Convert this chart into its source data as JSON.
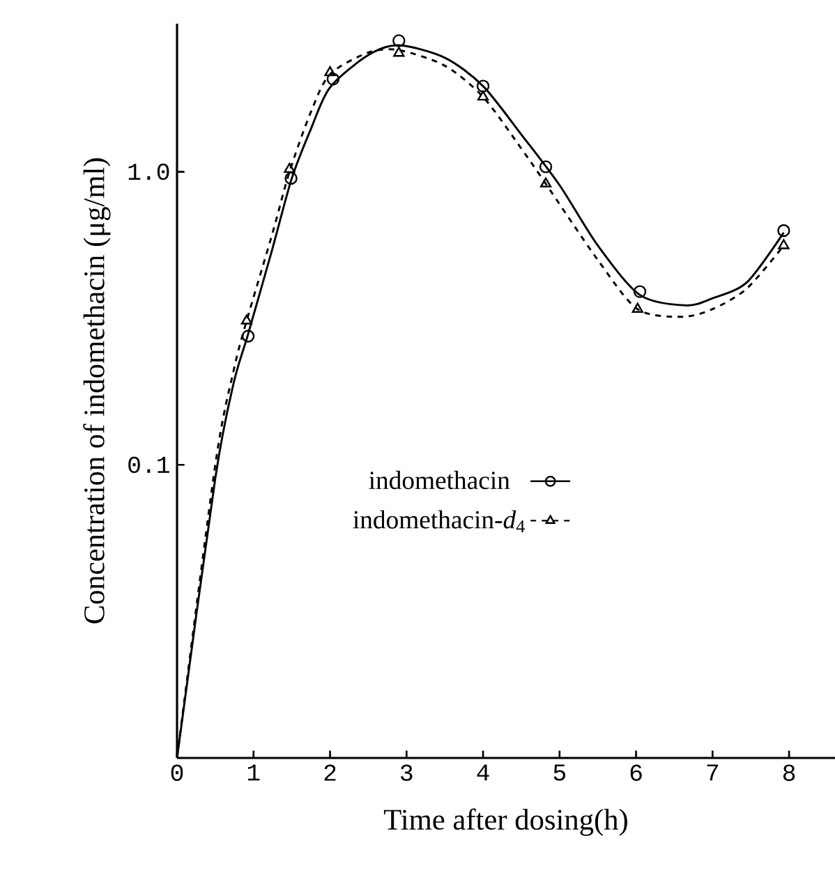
{
  "chart_data": {
    "type": "line",
    "xlabel": "Time after dosing(h)",
    "ylabel": "Concentration of indomethacin (μg/ml)",
    "log": "y",
    "xlim": [
      0,
      8.6
    ],
    "xticks": [
      0,
      1,
      2,
      3,
      4,
      5,
      6,
      7,
      8
    ],
    "ylim": [
      0.01,
      3.2
    ],
    "yticks": [
      0.1,
      {
        "value": 1,
        "label": "1.0"
      }
    ],
    "legend": "center",
    "series": [
      {
        "type": "line",
        "color": "#000000",
        "line_style": "solid",
        "marker": "none",
        "x": [
          0,
          0.5,
          0.74,
          0.93,
          1.25,
          1.5,
          1.75,
          2.0,
          2.5,
          2.9,
          3.5,
          4.0,
          4.5,
          5.0,
          5.5,
          6.05,
          6.65,
          7.0,
          7.45,
          7.93
        ],
        "values": [
          0.01,
          0.09,
          0.19,
          0.28,
          0.55,
          0.95,
          1.4,
          1.94,
          2.5,
          2.7,
          2.45,
          1.96,
          1.34,
          0.9,
          0.56,
          0.38,
          0.35,
          0.37,
          0.42,
          0.62
        ]
      },
      {
        "type": "line",
        "color": "#000000",
        "line_style": "dashed",
        "marker": "none",
        "x": [
          0,
          0.5,
          0.74,
          0.91,
          1.25,
          1.47,
          1.75,
          2.0,
          2.5,
          2.9,
          3.5,
          4.0,
          4.5,
          4.82,
          5.5,
          6.02,
          6.6,
          7.0,
          7.45,
          7.93
        ],
        "values": [
          0.01,
          0.1,
          0.21,
          0.31,
          0.62,
          1.0,
          1.6,
          2.15,
          2.55,
          2.6,
          2.3,
          1.8,
          1.2,
          0.91,
          0.5,
          0.34,
          0.32,
          0.34,
          0.4,
          0.56
        ]
      },
      {
        "type": "scatter",
        "name": "indomethacin",
        "color": "#000000",
        "marker": "circle",
        "line_style": "solid",
        "x": [
          0.93,
          1.49,
          2.04,
          2.9,
          4.0,
          4.82,
          6.05,
          7.93
        ],
        "values": [
          0.275,
          0.95,
          2.07,
          2.8,
          1.96,
          1.04,
          0.39,
          0.63
        ]
      },
      {
        "type": "scatter",
        "name": "indomethacin-*d*$_{4}$",
        "color": "#000000",
        "marker": "triangle",
        "line_style": "dashed",
        "x": [
          0.91,
          1.47,
          2.0,
          2.9,
          4.0,
          4.82,
          6.02,
          7.93
        ],
        "values": [
          0.31,
          1.02,
          2.18,
          2.54,
          1.8,
          0.91,
          0.34,
          0.56
        ]
      }
    ]
  }
}
